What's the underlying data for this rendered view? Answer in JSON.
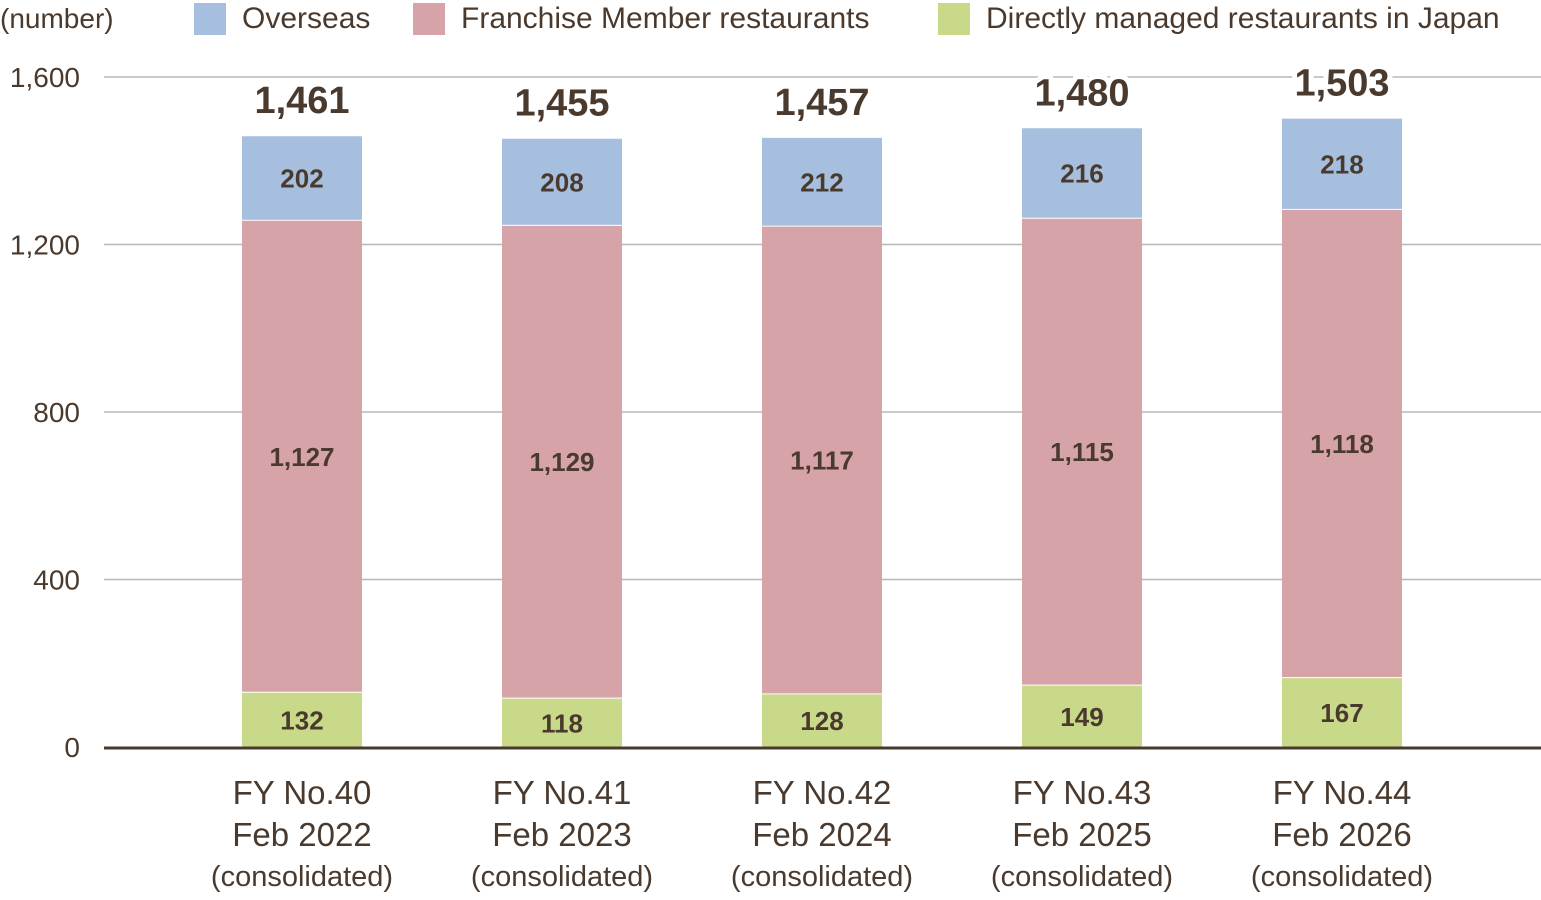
{
  "chart_data": {
    "type": "bar",
    "stacked": true,
    "unit_label": "(number)",
    "categories": [
      [
        "FY No.40",
        "Feb 2022",
        "(consolidated)"
      ],
      [
        "FY No.41",
        "Feb 2023",
        "(consolidated)"
      ],
      [
        "FY No.42",
        "Feb 2024",
        "(consolidated)"
      ],
      [
        "FY No.43",
        "Feb 2025",
        "(consolidated)"
      ],
      [
        "FY No.44",
        "Feb 2026",
        "(consolidated)"
      ]
    ],
    "series": [
      {
        "name": "Directly managed restaurants in Japan",
        "color": "#c8d98a",
        "values": [
          132,
          118,
          128,
          149,
          167
        ]
      },
      {
        "name": "Franchise Member restaurants",
        "color": "#d5a3a8",
        "values": [
          1127,
          1129,
          1117,
          1115,
          1118
        ]
      },
      {
        "name": "Overseas",
        "color": "#a6bfdf",
        "values": [
          202,
          208,
          212,
          216,
          218
        ]
      }
    ],
    "totals": [
      "1,461",
      "1,455",
      "1,457",
      "1,480",
      "1,503"
    ],
    "segment_labels": [
      [
        "132",
        "118",
        "128",
        "149",
        "167"
      ],
      [
        "1,127",
        "1,129",
        "1,117",
        "1,115",
        "1,118"
      ],
      [
        "202",
        "208",
        "212",
        "216",
        "218"
      ]
    ],
    "yticks": [
      0,
      400,
      800,
      1200,
      1600
    ],
    "ytick_labels": [
      "0",
      "400",
      "800",
      "1,200",
      "1,600"
    ],
    "ylim": [
      0,
      1600
    ],
    "grid": true,
    "legend_position": "top",
    "legend_order": [
      "Overseas",
      "Franchise Member restaurants",
      "Directly managed restaurants in Japan"
    ],
    "gridline_color": "#b8b8b8",
    "axis_color": "#4a3a2e"
  }
}
